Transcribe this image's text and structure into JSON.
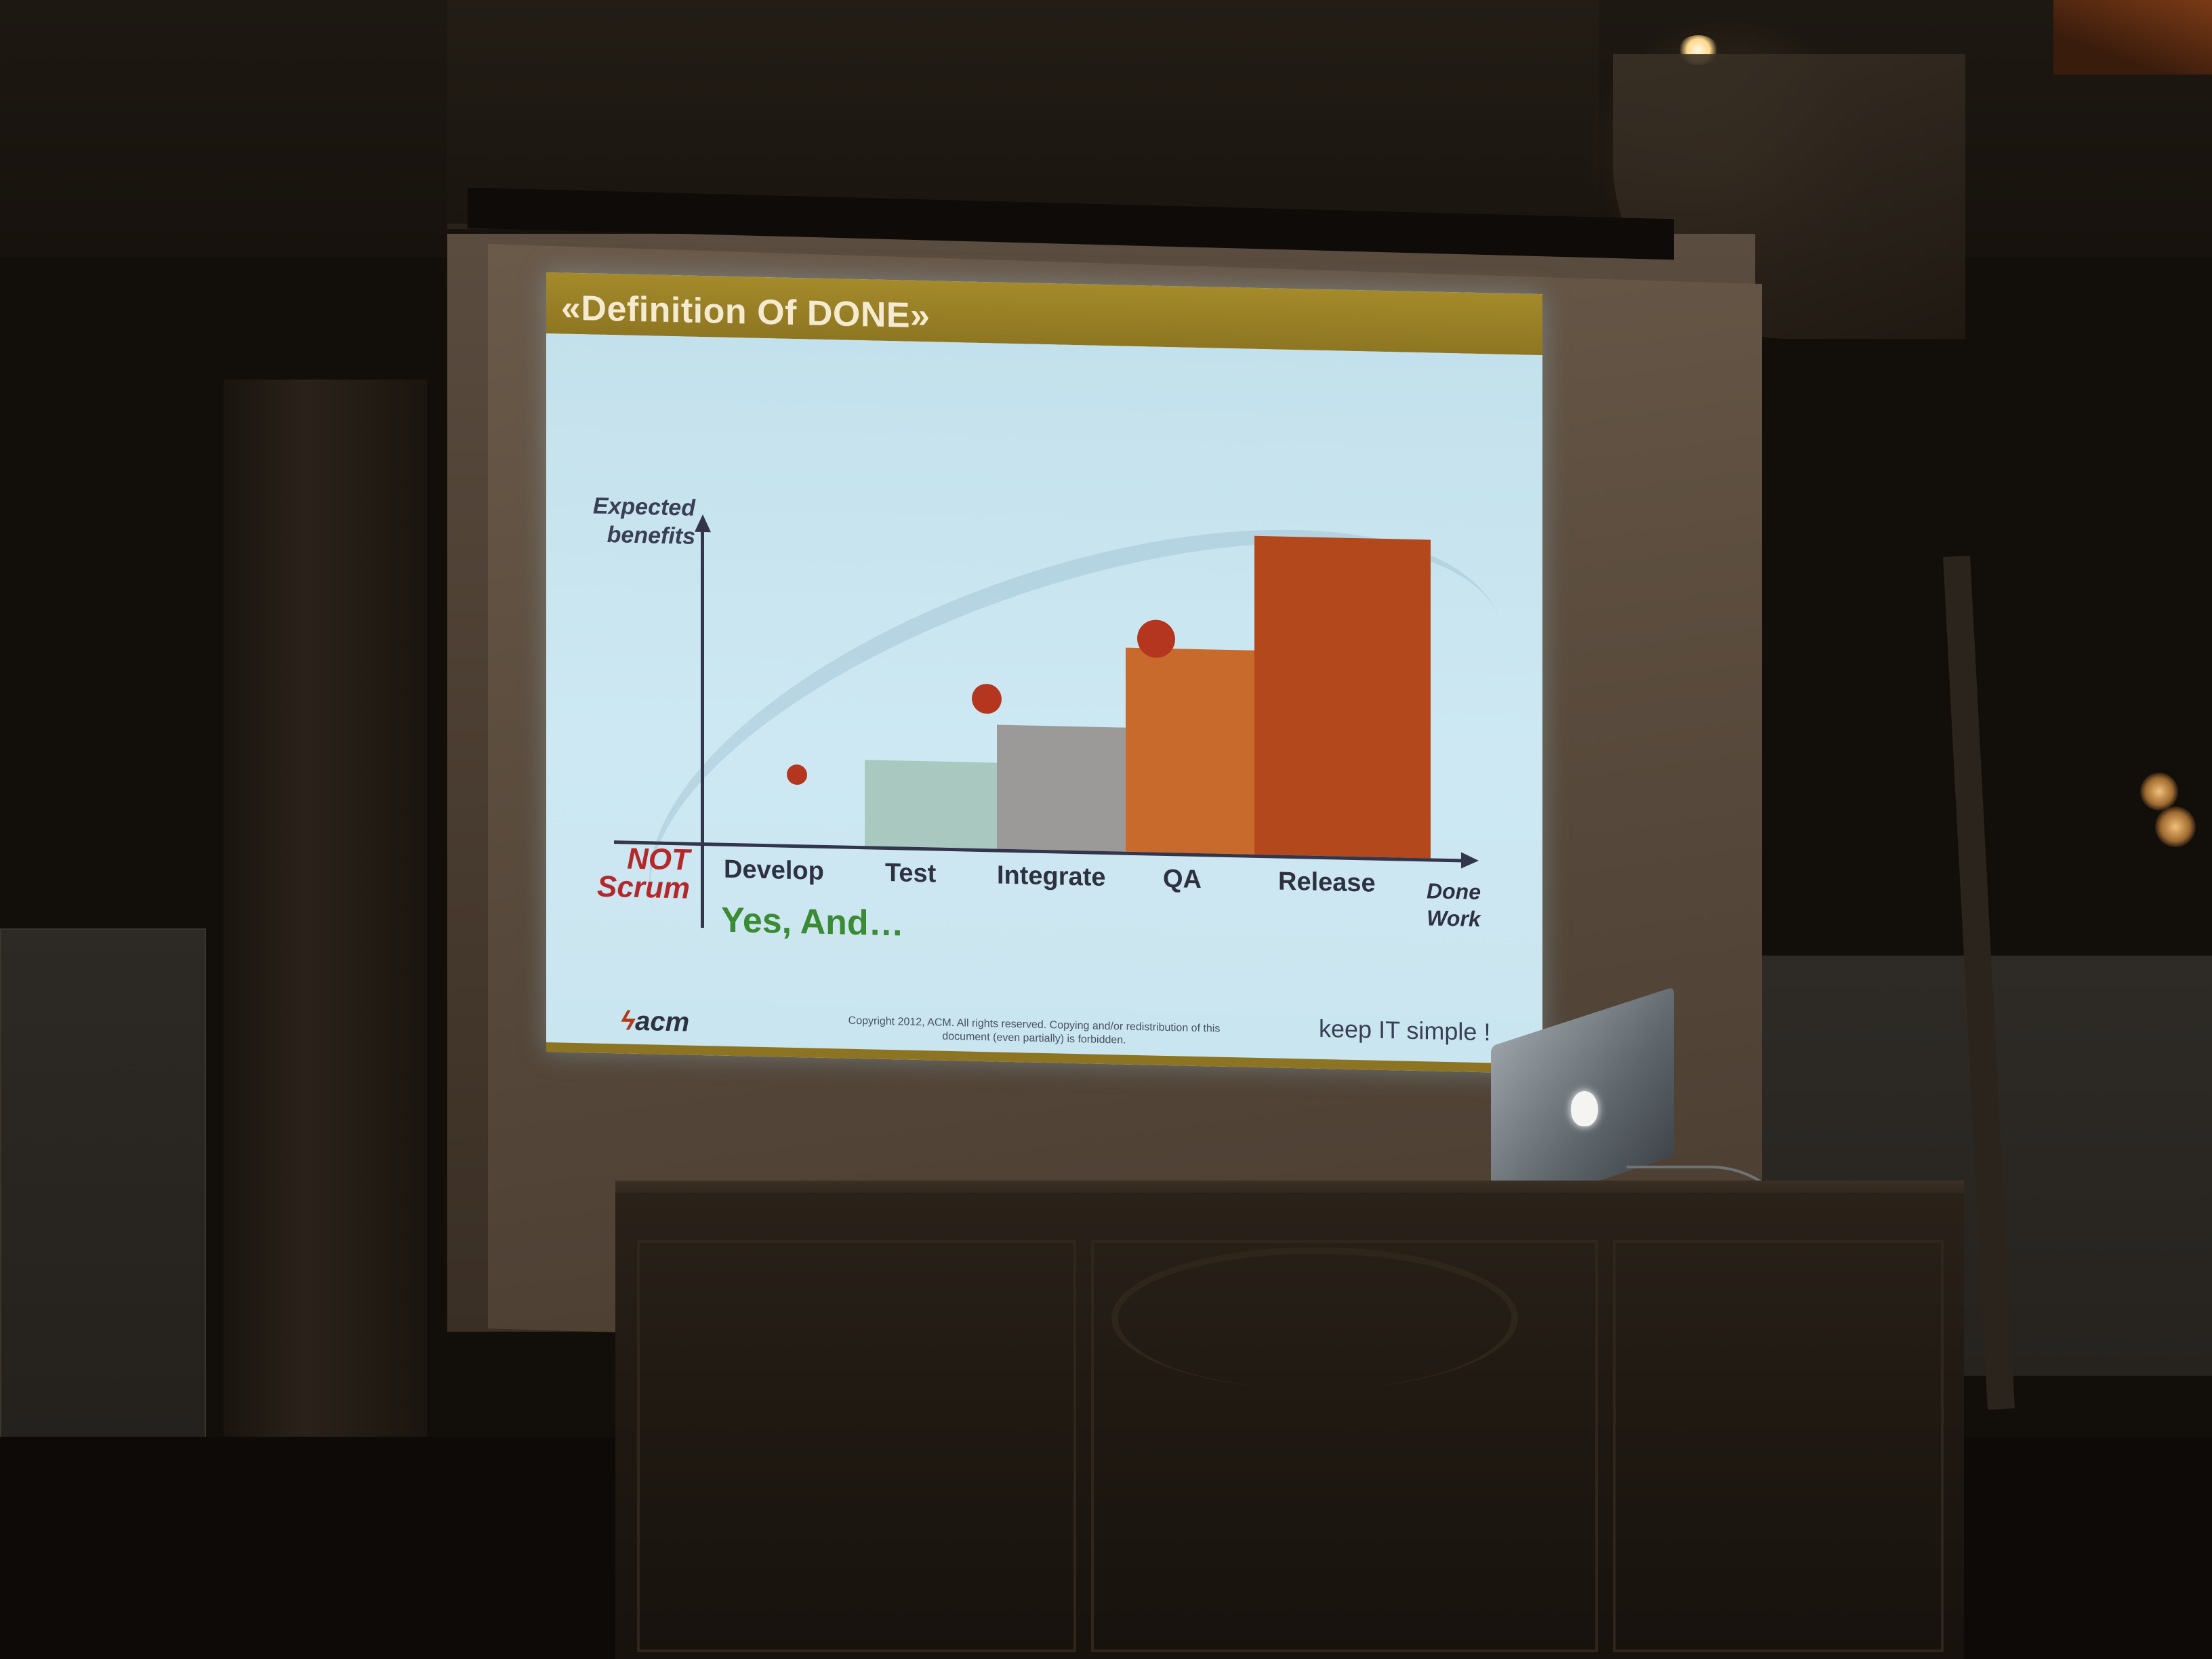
{
  "slide": {
    "title": "«Definition Of DONE»",
    "y_axis_label": "Expected\nbenefits",
    "categories": [
      "Develop",
      "Test",
      "Integrate",
      "QA",
      "Release"
    ],
    "last_category": "Done\nWork",
    "not_label": "NOT",
    "scrum_label": "Scrum",
    "yes_and": "Yes, And…",
    "logo_text": "acm",
    "copyright": "Copyright 2012, ACM. All rights reserved. Copying and/or redistribution of this document (even partially) is forbidden.",
    "tagline": "keep IT simple !",
    "bar_heights": [
      0,
      0.27,
      0.39,
      0.64,
      1.0
    ],
    "dot_levels": [
      0.22,
      0.47,
      0.67
    ],
    "colors": {
      "title_bar": "#a48a2a",
      "background": "#c9e6f0",
      "bar_test": "#a8c8c0",
      "bar_integrate": "#9c9a98",
      "bar_qa": "#c86a2c",
      "bar_release": "#b2481c",
      "dot": "#b5361e",
      "not_scrum": "#b5282a",
      "yes_and": "#3b8b35"
    }
  }
}
